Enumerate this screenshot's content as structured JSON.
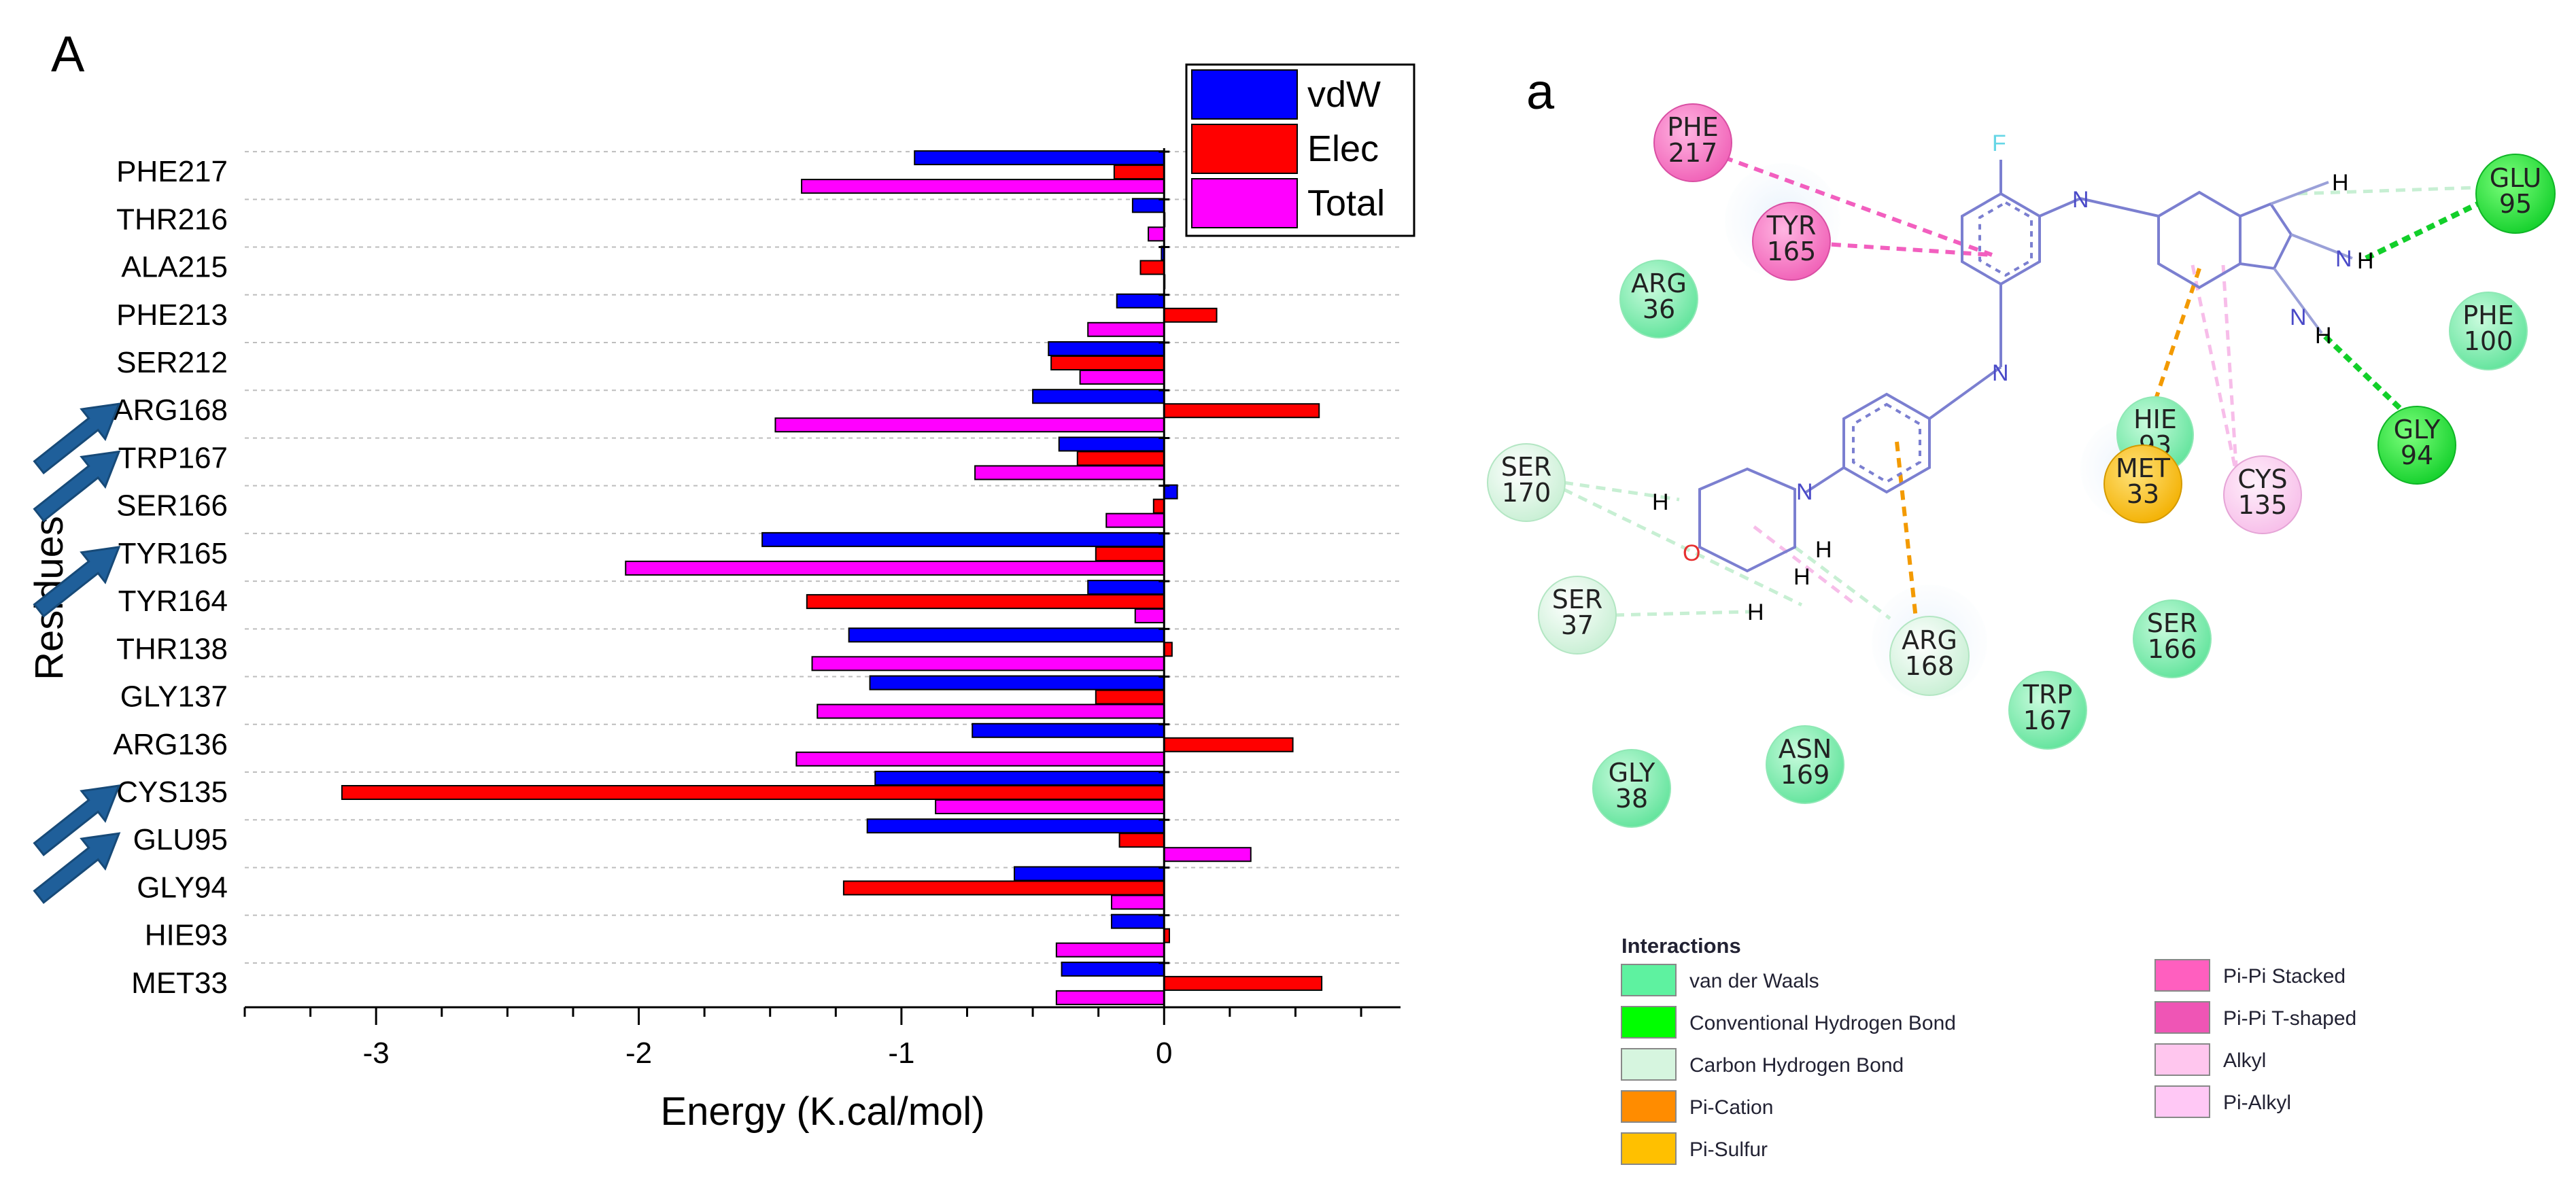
{
  "chart_data": {
    "type": "bar",
    "orientation": "horizontal",
    "panel_label": "A",
    "title": "",
    "xlabel": "Energy (K.cal/mol)",
    "ylabel": "Residues",
    "xlim": [
      -3.5,
      0.9
    ],
    "xticks": [
      -3,
      -2,
      -1,
      0
    ],
    "xtick_labels": [
      "-3",
      "-2",
      "-1",
      "0"
    ],
    "grid": "horizontal dashed",
    "legend_position": "top-right",
    "categories": [
      "PHE217",
      "THR216",
      "ALA215",
      "PHE213",
      "SER212",
      "ARG168",
      "TRP167",
      "SER166",
      "TYR165",
      "TYR164",
      "THR138",
      "GLY137",
      "ARG136",
      "CYS135",
      "GLU95",
      "GLY94",
      "HIE93",
      "MET33"
    ],
    "highlighted_residues": [
      "ARG168",
      "TRP167",
      "TYR165",
      "CYS135",
      "GLU95"
    ],
    "series": [
      {
        "name": "vdW",
        "color": "#0000ff",
        "values": [
          -0.95,
          -0.12,
          -0.01,
          -0.18,
          -0.44,
          -0.5,
          -0.4,
          0.05,
          -1.53,
          -0.29,
          -1.2,
          -1.12,
          -0.73,
          -1.1,
          -1.13,
          -0.57,
          -0.2,
          -0.39
        ]
      },
      {
        "name": "Elec",
        "color": "#ff0000",
        "values": [
          -0.19,
          0.0,
          -0.09,
          0.2,
          -0.43,
          0.59,
          -0.33,
          -0.04,
          -0.26,
          -1.36,
          0.03,
          -0.26,
          0.49,
          -3.13,
          -0.17,
          -1.22,
          0.02,
          0.6
        ]
      },
      {
        "name": "Total",
        "color": "#ff00ff",
        "values": [
          -1.38,
          -0.06,
          0.0,
          -0.29,
          -0.32,
          -1.48,
          -0.72,
          -0.22,
          -2.05,
          -0.11,
          -1.34,
          -1.32,
          -1.4,
          -0.87,
          0.33,
          -0.2,
          -0.41,
          -0.41
        ]
      }
    ]
  },
  "interaction_diagram": {
    "panel_label": "a",
    "residues": [
      {
        "id": "PHE217",
        "line1": "PHE",
        "line2": "217",
        "type": "pi-pi-stacked"
      },
      {
        "id": "TYR165",
        "line1": "TYR",
        "line2": "165",
        "type": "pi-pi-stacked"
      },
      {
        "id": "ARG36",
        "line1": "ARG",
        "line2": "36",
        "type": "vdw"
      },
      {
        "id": "GLU95",
        "line1": "GLU",
        "line2": "95",
        "type": "conventional-hb"
      },
      {
        "id": "PHE100",
        "line1": "PHE",
        "line2": "100",
        "type": "vdw"
      },
      {
        "id": "GLY94",
        "line1": "GLY",
        "line2": "94",
        "type": "conventional-hb"
      },
      {
        "id": "HIE93",
        "line1": "HIE",
        "line2": "93",
        "type": "vdw"
      },
      {
        "id": "MET33",
        "line1": "MET",
        "line2": "33",
        "type": "pi-sulfur"
      },
      {
        "id": "CYS135",
        "line1": "CYS",
        "line2": "135",
        "type": "alkyl"
      },
      {
        "id": "SER170",
        "line1": "SER",
        "line2": "170",
        "type": "carbon-hb"
      },
      {
        "id": "SER37",
        "line1": "SER",
        "line2": "37",
        "type": "carbon-hb"
      },
      {
        "id": "ARG168",
        "line1": "ARG",
        "line2": "168",
        "type": "carbon-hb"
      },
      {
        "id": "SER166",
        "line1": "SER",
        "line2": "166",
        "type": "vdw"
      },
      {
        "id": "TRP167",
        "line1": "TRP",
        "line2": "167",
        "type": "vdw"
      },
      {
        "id": "ASN169",
        "line1": "ASN",
        "line2": "169",
        "type": "vdw"
      },
      {
        "id": "GLY38",
        "line1": "GLY",
        "line2": "38",
        "type": "vdw"
      }
    ],
    "atom_labels": {
      "fluorine": "F",
      "nitrogen": "N",
      "oxygen": "O",
      "hydrogen": "H"
    },
    "legend": {
      "title": "Interactions",
      "items": [
        {
          "label": "van der Waals",
          "color": "#5ef2a0"
        },
        {
          "label": "Conventional Hydrogen Bond",
          "color": "#00ff00"
        },
        {
          "label": "Carbon Hydrogen Bond",
          "color": "#d6f5df"
        },
        {
          "label": "Pi-Cation",
          "color": "#ff8c00"
        },
        {
          "label": "Pi-Sulfur",
          "color": "#ffc000"
        },
        {
          "label": "Pi-Pi Stacked",
          "color": "#ff5fbf"
        },
        {
          "label": "Pi-Pi T-shaped",
          "color": "#ef55b5"
        },
        {
          "label": "Alkyl",
          "color": "#ffc6ee"
        },
        {
          "label": "Pi-Alkyl",
          "color": "#ffc8f5"
        }
      ]
    }
  }
}
